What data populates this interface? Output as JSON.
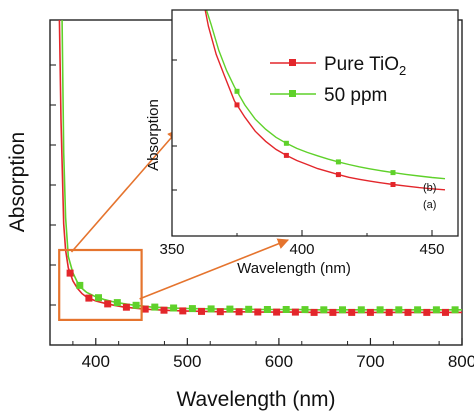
{
  "chart_data": [
    {
      "type": "line",
      "xlabel": "Wavelength (nm)",
      "ylabel": "Absorption",
      "xlim": [
        350,
        800
      ],
      "x_ticks": [
        400,
        500,
        600,
        700,
        800
      ],
      "y_tick_labels_shown": false,
      "grid": false,
      "series": [
        {
          "name": "Pure TiO2",
          "color": "#e3262b",
          "marker": "square",
          "x": [
            350,
            360,
            362,
            365,
            367,
            370,
            375,
            380,
            385,
            390,
            400,
            410,
            420,
            430,
            440,
            450,
            460,
            480,
            500,
            520,
            540,
            560,
            580,
            600,
            620,
            640,
            660,
            680,
            700,
            720,
            740,
            760,
            780,
            800
          ],
          "y": [
            0.95,
            0.95,
            0.6,
            0.28,
            0.2,
            0.145,
            0.105,
            0.082,
            0.066,
            0.055,
            0.043,
            0.036,
            0.03,
            0.025,
            0.022,
            0.019,
            0.017,
            0.014,
            0.012,
            0.011,
            0.01,
            0.01,
            0.009,
            0.009,
            0.009,
            0.008,
            0.008,
            0.008,
            0.008,
            0.008,
            0.008,
            0.008,
            0.008,
            0.008
          ]
        },
        {
          "name": "50 ppm",
          "color": "#5fd12a",
          "marker": "square",
          "x": [
            350,
            360,
            362,
            363,
            365,
            367,
            370,
            375,
            380,
            385,
            390,
            400,
            410,
            420,
            430,
            440,
            450,
            460,
            480,
            500,
            520,
            540,
            560,
            580,
            600,
            620,
            640,
            660,
            680,
            700,
            720,
            740,
            760,
            780,
            800
          ],
          "y": [
            0.95,
            0.95,
            0.95,
            0.95,
            0.5,
            0.3,
            0.18,
            0.13,
            0.1,
            0.082,
            0.07,
            0.056,
            0.047,
            0.04,
            0.035,
            0.031,
            0.028,
            0.025,
            0.022,
            0.02,
            0.019,
            0.018,
            0.018,
            0.017,
            0.017,
            0.017,
            0.016,
            0.016,
            0.016,
            0.016,
            0.016,
            0.016,
            0.016,
            0.016,
            0.016
          ]
        }
      ],
      "zoom_region": {
        "x": [
          360,
          450
        ]
      }
    },
    {
      "type": "line",
      "xlabel": "Wavelength (nm)",
      "ylabel": "Absorption",
      "xlim": [
        350,
        460
      ],
      "x_ticks": [
        350,
        400,
        450
      ],
      "ylim": [
        0,
        1
      ],
      "y_tick_labels_shown": false,
      "legend_position": "top-right",
      "legend": [
        "Pure TiO",
        "50 ppm"
      ],
      "legend_subscript": "2",
      "curve_labels": [
        "(a)",
        "(b)"
      ],
      "series": [
        {
          "name": "Pure TiO2",
          "color": "#e3262b",
          "marker": "square",
          "x": [
            362,
            364,
            367,
            370,
            374,
            378,
            382,
            386,
            390,
            394,
            398,
            402,
            406,
            410,
            414,
            418,
            422,
            426,
            430,
            435,
            440,
            445,
            450,
            455
          ],
          "y": [
            1.05,
            0.92,
            0.78,
            0.68,
            0.55,
            0.47,
            0.4,
            0.35,
            0.31,
            0.28,
            0.255,
            0.235,
            0.215,
            0.2,
            0.185,
            0.172,
            0.162,
            0.153,
            0.145,
            0.136,
            0.128,
            0.121,
            0.115,
            0.11
          ]
        },
        {
          "name": "50 ppm",
          "color": "#5fd12a",
          "marker": "square",
          "x": [
            362,
            365,
            368,
            371,
            374,
            378,
            382,
            386,
            390,
            394,
            398,
            402,
            406,
            410,
            414,
            418,
            422,
            426,
            430,
            435,
            440,
            445,
            450,
            455
          ],
          "y": [
            1.05,
            0.93,
            0.8,
            0.7,
            0.62,
            0.53,
            0.46,
            0.41,
            0.37,
            0.34,
            0.315,
            0.295,
            0.278,
            0.262,
            0.248,
            0.235,
            0.224,
            0.214,
            0.205,
            0.195,
            0.186,
            0.178,
            0.171,
            0.165
          ]
        }
      ],
      "marker_x": [
        375,
        394,
        414,
        435
      ]
    }
  ]
}
